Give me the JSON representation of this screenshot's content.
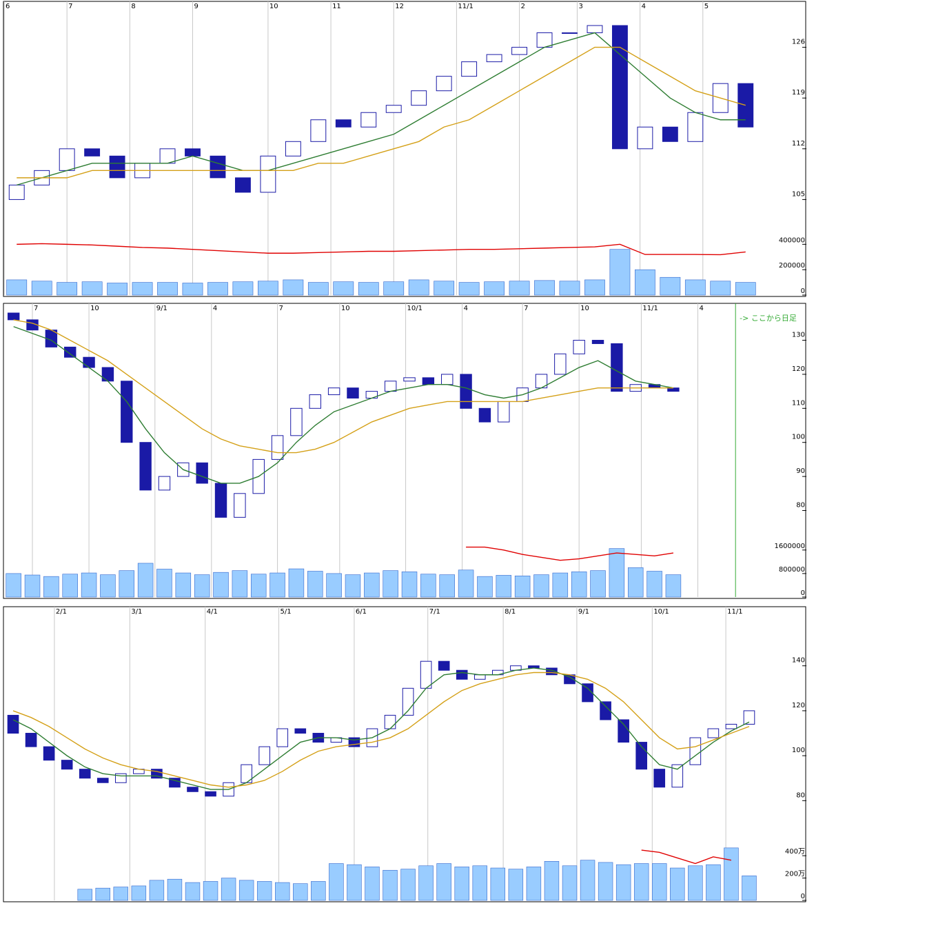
{
  "chart_data": [
    {
      "type": "candlestick",
      "xlim": [
        0,
        30
      ],
      "xticks": [
        {
          "value": 0,
          "label": "6"
        },
        {
          "value": 2.5,
          "label": "7"
        },
        {
          "value": 5,
          "label": "8"
        },
        {
          "value": 7.5,
          "label": "9"
        },
        {
          "value": 10.5,
          "label": "10"
        },
        {
          "value": 13,
          "label": "11"
        },
        {
          "value": 15.5,
          "label": "12"
        },
        {
          "value": 18,
          "label": "11/1"
        },
        {
          "value": 20.5,
          "label": "2"
        },
        {
          "value": 22.8,
          "label": "3"
        },
        {
          "value": 25.3,
          "label": "4"
        },
        {
          "value": 27.8,
          "label": "5"
        }
      ],
      "ylim": [
        100,
        131
      ],
      "yticks": [
        105,
        112,
        119,
        126
      ],
      "open": [
        105,
        107,
        109,
        112,
        111,
        108,
        110,
        112,
        111,
        108,
        106,
        111,
        113,
        116,
        115,
        117,
        118,
        120,
        122,
        124,
        125,
        126,
        128,
        128,
        129,
        112,
        115,
        113,
        117,
        121
      ],
      "close": [
        107,
        109,
        112,
        111,
        108,
        110,
        112,
        111,
        108,
        106,
        111,
        113,
        116,
        115,
        117,
        118,
        120,
        122,
        124,
        125,
        126,
        128,
        128,
        129,
        112,
        115,
        113,
        117,
        121,
        115
      ],
      "ma": [
        {
          "color": "#2e7d32",
          "values": [
            107,
            108,
            109,
            110,
            110,
            110,
            110,
            111,
            110,
            109,
            109,
            110,
            111,
            112,
            113,
            114,
            116,
            118,
            120,
            122,
            124,
            126,
            127,
            128,
            125,
            122,
            119,
            117,
            116,
            116
          ]
        },
        {
          "color": "#d4a017",
          "values": [
            108,
            108,
            108,
            109,
            109,
            109,
            109,
            109,
            109,
            109,
            109,
            109,
            110,
            110,
            111,
            112,
            113,
            115,
            116,
            118,
            120,
            122,
            124,
            126,
            126,
            124,
            122,
            120,
            119,
            118
          ]
        }
      ],
      "volume": {
        "ylim": [
          0,
          440000
        ],
        "yticks": [
          0,
          200000,
          400000
        ],
        "values": [
          120000,
          110000,
          100000,
          105000,
          95000,
          100000,
          100000,
          95000,
          100000,
          105000,
          110000,
          120000,
          100000,
          105000,
          100000,
          105000,
          120000,
          110000,
          100000,
          105000,
          110000,
          115000,
          110000,
          120000,
          360000,
          200000,
          140000,
          120000,
          110000,
          100000
        ],
        "ma": {
          "color": "#e00000",
          "values": [
            400000,
            405000,
            400000,
            395000,
            385000,
            375000,
            370000,
            360000,
            350000,
            340000,
            330000,
            330000,
            335000,
            340000,
            345000,
            345000,
            350000,
            355000,
            360000,
            360000,
            365000,
            370000,
            375000,
            380000,
            400000,
            320000,
            320000,
            320000,
            318000,
            340000
          ]
        }
      }
    },
    {
      "type": "candlestick",
      "xlim": [
        0,
        40
      ],
      "xticks": [
        {
          "value": 1.5,
          "label": "7"
        },
        {
          "value": 4.5,
          "label": "10"
        },
        {
          "value": 8,
          "label": "9/1"
        },
        {
          "value": 11,
          "label": "4"
        },
        {
          "value": 14.5,
          "label": "7"
        },
        {
          "value": 17.8,
          "label": "10"
        },
        {
          "value": 21.3,
          "label": "10/1"
        },
        {
          "value": 24.3,
          "label": "4"
        },
        {
          "value": 27.5,
          "label": "7"
        },
        {
          "value": 30.5,
          "label": "10"
        },
        {
          "value": 33.8,
          "label": "11/1"
        },
        {
          "value": 36.8,
          "label": "4"
        }
      ],
      "ylim": [
        72,
        138
      ],
      "yticks": [
        80,
        90,
        100,
        110,
        120,
        130
      ],
      "annotation": "-> ここから日足",
      "annotation_x": 38.8,
      "open": [
        138,
        136,
        133,
        128,
        125,
        122,
        118,
        100,
        86,
        90,
        94,
        88,
        78,
        85,
        95,
        102,
        110,
        114,
        116,
        113,
        115,
        118,
        119,
        117,
        120,
        110,
        106,
        112,
        116,
        120,
        126,
        130,
        129,
        115,
        117,
        116
      ],
      "close": [
        136,
        133,
        128,
        125,
        122,
        118,
        100,
        86,
        90,
        94,
        88,
        78,
        85,
        95,
        102,
        110,
        114,
        116,
        113,
        115,
        118,
        119,
        117,
        120,
        110,
        106,
        112,
        116,
        120,
        126,
        130,
        129,
        115,
        117,
        116,
        115
      ],
      "ma": [
        {
          "color": "#2e7d32",
          "values": [
            134,
            132,
            130,
            126,
            122,
            118,
            112,
            104,
            97,
            92,
            90,
            88,
            88,
            90,
            94,
            100,
            105,
            109,
            111,
            113,
            115,
            116,
            117,
            117,
            116,
            114,
            113,
            114,
            116,
            119,
            122,
            124,
            121,
            118,
            117,
            116
          ]
        },
        {
          "color": "#d4a017",
          "values": [
            136,
            135,
            133,
            130,
            127,
            124,
            120,
            116,
            112,
            108,
            104,
            101,
            99,
            98,
            97,
            97,
            98,
            100,
            103,
            106,
            108,
            110,
            111,
            112,
            112,
            112,
            112,
            112,
            113,
            114,
            115,
            116,
            116,
            116,
            116,
            116
          ]
        }
      ],
      "volume": {
        "ylim": [
          0,
          1900000
        ],
        "yticks": [
          0,
          800000,
          1600000
        ],
        "values": [
          800000,
          750000,
          700000,
          780000,
          820000,
          760000,
          900000,
          1150000,
          950000,
          820000,
          760000,
          840000,
          900000,
          780000,
          820000,
          960000,
          880000,
          800000,
          760000,
          820000,
          900000,
          860000,
          780000,
          760000,
          920000,
          700000,
          740000,
          720000,
          760000,
          820000,
          860000,
          900000,
          1650000,
          1000000,
          880000,
          760000
        ],
        "ma": {
          "color": "#e00000",
          "values": [
            null,
            null,
            null,
            null,
            null,
            null,
            null,
            null,
            null,
            null,
            null,
            null,
            null,
            null,
            null,
            null,
            null,
            null,
            null,
            null,
            null,
            null,
            null,
            null,
            1700000,
            1700000,
            1600000,
            1450000,
            1350000,
            1250000,
            1300000,
            1400000,
            1500000,
            1450000,
            1400000,
            1500000
          ]
        }
      }
    },
    {
      "type": "candlestick",
      "xlim": [
        0,
        42
      ],
      "xticks": [
        {
          "value": 2.8,
          "label": "2/1"
        },
        {
          "value": 7,
          "label": "3/1"
        },
        {
          "value": 11.2,
          "label": "4/1"
        },
        {
          "value": 15.3,
          "label": "5/1"
        },
        {
          "value": 19.5,
          "label": "6/1"
        },
        {
          "value": 23.6,
          "label": "7/1"
        },
        {
          "value": 27.8,
          "label": "8/1"
        },
        {
          "value": 31.9,
          "label": "9/1"
        },
        {
          "value": 36.1,
          "label": "10/1"
        },
        {
          "value": 40.2,
          "label": "11/1"
        }
      ],
      "ylim": [
        62,
        162
      ],
      "yticks": [
        80,
        100,
        120,
        140
      ],
      "open": [
        118,
        110,
        104,
        98,
        94,
        90,
        88,
        92,
        94,
        90,
        86,
        84,
        82,
        88,
        96,
        104,
        112,
        110,
        106,
        108,
        104,
        112,
        118,
        130,
        142,
        138,
        134,
        136,
        138,
        140,
        139,
        136,
        132,
        124,
        116,
        106,
        94,
        86,
        96,
        108,
        112,
        114
      ],
      "close": [
        110,
        104,
        98,
        94,
        90,
        88,
        92,
        94,
        90,
        86,
        84,
        82,
        88,
        96,
        104,
        112,
        110,
        106,
        108,
        104,
        112,
        118,
        130,
        142,
        138,
        134,
        136,
        138,
        140,
        139,
        136,
        132,
        124,
        116,
        106,
        94,
        86,
        96,
        108,
        112,
        114,
        120
      ],
      "ma": [
        {
          "color": "#2e7d32",
          "values": [
            116,
            112,
            106,
            100,
            95,
            92,
            91,
            91,
            91,
            89,
            87,
            85,
            85,
            88,
            94,
            100,
            106,
            108,
            108,
            107,
            108,
            112,
            120,
            130,
            136,
            137,
            136,
            136,
            138,
            139,
            138,
            135,
            130,
            122,
            114,
            104,
            96,
            94,
            100,
            106,
            111,
            115
          ]
        },
        {
          "color": "#d4a017",
          "values": [
            120,
            117,
            113,
            108,
            103,
            99,
            96,
            94,
            93,
            91,
            89,
            87,
            86,
            87,
            89,
            93,
            98,
            102,
            104,
            105,
            106,
            108,
            112,
            118,
            124,
            129,
            132,
            134,
            136,
            137,
            137,
            136,
            134,
            130,
            124,
            116,
            108,
            103,
            104,
            107,
            110,
            113
          ]
        }
      ],
      "volume": {
        "ylim": [
          0,
          5000000
        ],
        "yticks": [
          {
            "value": 0,
            "label": "0"
          },
          {
            "value": 2000000,
            "label": "200万"
          },
          {
            "value": 4000000,
            "label": "400万"
          }
        ],
        "values": [
          null,
          null,
          null,
          null,
          1000000,
          1100000,
          1200000,
          1300000,
          1800000,
          1900000,
          1600000,
          1700000,
          2000000,
          1800000,
          1700000,
          1600000,
          1500000,
          1700000,
          3300000,
          3200000,
          3000000,
          2700000,
          2800000,
          3100000,
          3300000,
          3000000,
          3100000,
          2900000,
          2800000,
          3000000,
          3500000,
          3100000,
          3600000,
          3400000,
          3200000,
          3300000,
          3300000,
          2900000,
          3100000,
          3200000,
          4700000,
          2200000
        ],
        "ma": {
          "color": "#e00000",
          "values": [
            null,
            null,
            null,
            null,
            null,
            null,
            null,
            null,
            null,
            null,
            null,
            null,
            null,
            null,
            null,
            null,
            null,
            null,
            null,
            null,
            null,
            null,
            null,
            null,
            null,
            null,
            null,
            null,
            null,
            null,
            null,
            null,
            null,
            null,
            null,
            4500000,
            4300000,
            3800000,
            3300000,
            3900000,
            3600000,
            null
          ]
        }
      }
    }
  ]
}
